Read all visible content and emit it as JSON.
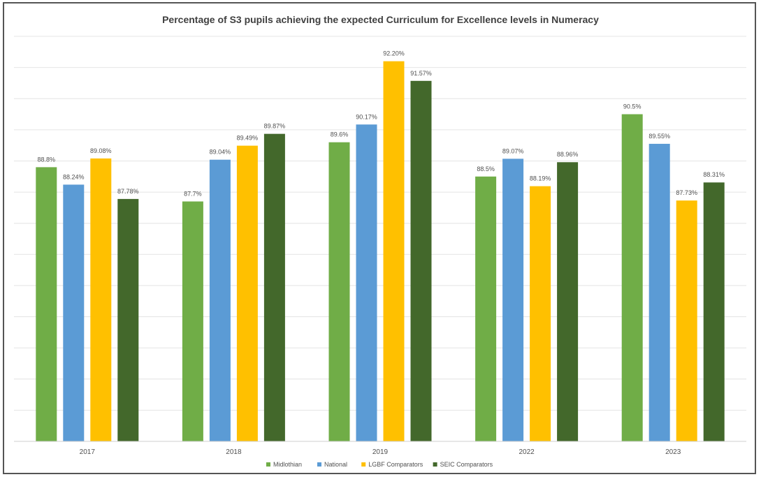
{
  "chart_data": {
    "type": "bar",
    "title": "Percentage of S3 pupils achieving the expected Curriculum for Excellence levels in Numeracy",
    "xlabel": "",
    "ylabel": "",
    "categories": [
      "2017",
      "2018",
      "2019",
      "2022",
      "2023"
    ],
    "ylim": [
      80,
      93
    ],
    "grid": true,
    "legend_position": "bottom",
    "series": [
      {
        "name": "Midlothian",
        "color": "#70ad47",
        "values": [
          88.8,
          87.7,
          89.6,
          88.5,
          90.5
        ],
        "labels": [
          "88.8%",
          "87.7%",
          "89.6%",
          "88.5%",
          "90.5%"
        ]
      },
      {
        "name": "National",
        "color": "#5b9bd5",
        "values": [
          88.24,
          89.04,
          90.17,
          89.07,
          89.55
        ],
        "labels": [
          "88.24%",
          "89.04%",
          "90.17%",
          "89.07%",
          "89.55%"
        ]
      },
      {
        "name": "LGBF Comparators",
        "color": "#ffc000",
        "values": [
          89.08,
          89.49,
          92.2,
          88.19,
          87.73
        ],
        "labels": [
          "89.08%",
          "89.49%",
          "92.20%",
          "88.19%",
          "87.73%"
        ]
      },
      {
        "name": "SEIC Comparators",
        "color": "#43682b",
        "values": [
          87.78,
          89.87,
          91.57,
          88.96,
          88.31
        ],
        "labels": [
          "87.78%",
          "89.87%",
          "91.57%",
          "88.96%",
          "88.31%"
        ]
      }
    ]
  }
}
